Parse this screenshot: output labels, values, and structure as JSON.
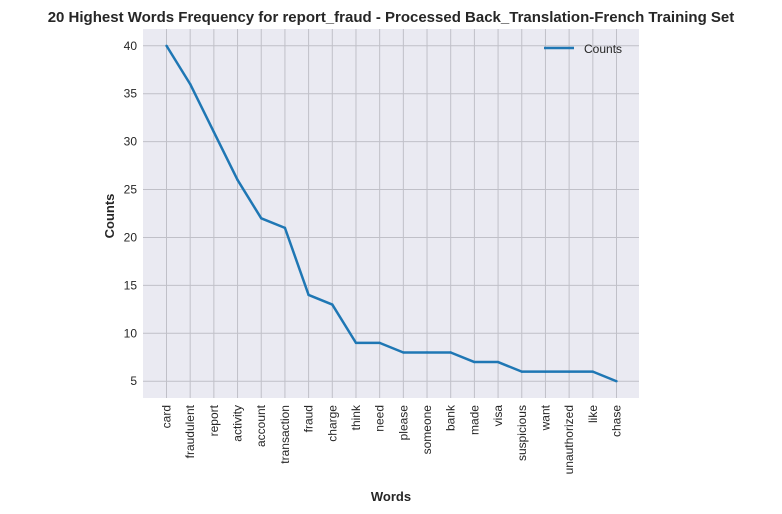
{
  "chart_data": {
    "type": "line",
    "title": "20 Highest Words Frequency for report_fraud - Processed Back_Translation-French Training Set",
    "xlabel": "Words",
    "ylabel": "Counts",
    "categories": [
      "card",
      "fraudulent",
      "report",
      "activity",
      "account",
      "transaction",
      "fraud",
      "charge",
      "think",
      "need",
      "please",
      "someone",
      "bank",
      "made",
      "visa",
      "suspicious",
      "want",
      "unauthorized",
      "like",
      "chase"
    ],
    "series": [
      {
        "name": "Counts",
        "values": [
          40,
          36,
          31,
          26,
          22,
          21,
          14,
          13,
          9,
          9,
          8,
          8,
          8,
          7,
          7,
          6,
          6,
          6,
          6,
          5
        ]
      }
    ],
    "yticks": [
      5,
      10,
      15,
      20,
      25,
      30,
      35,
      40
    ],
    "ylim": [
      3.25,
      41.75
    ],
    "grid": true,
    "legend": "top-right",
    "colors": {
      "line": "#1f77b4",
      "plot_bg": "#eaeaf2",
      "grid": "#c0c0c8"
    }
  }
}
